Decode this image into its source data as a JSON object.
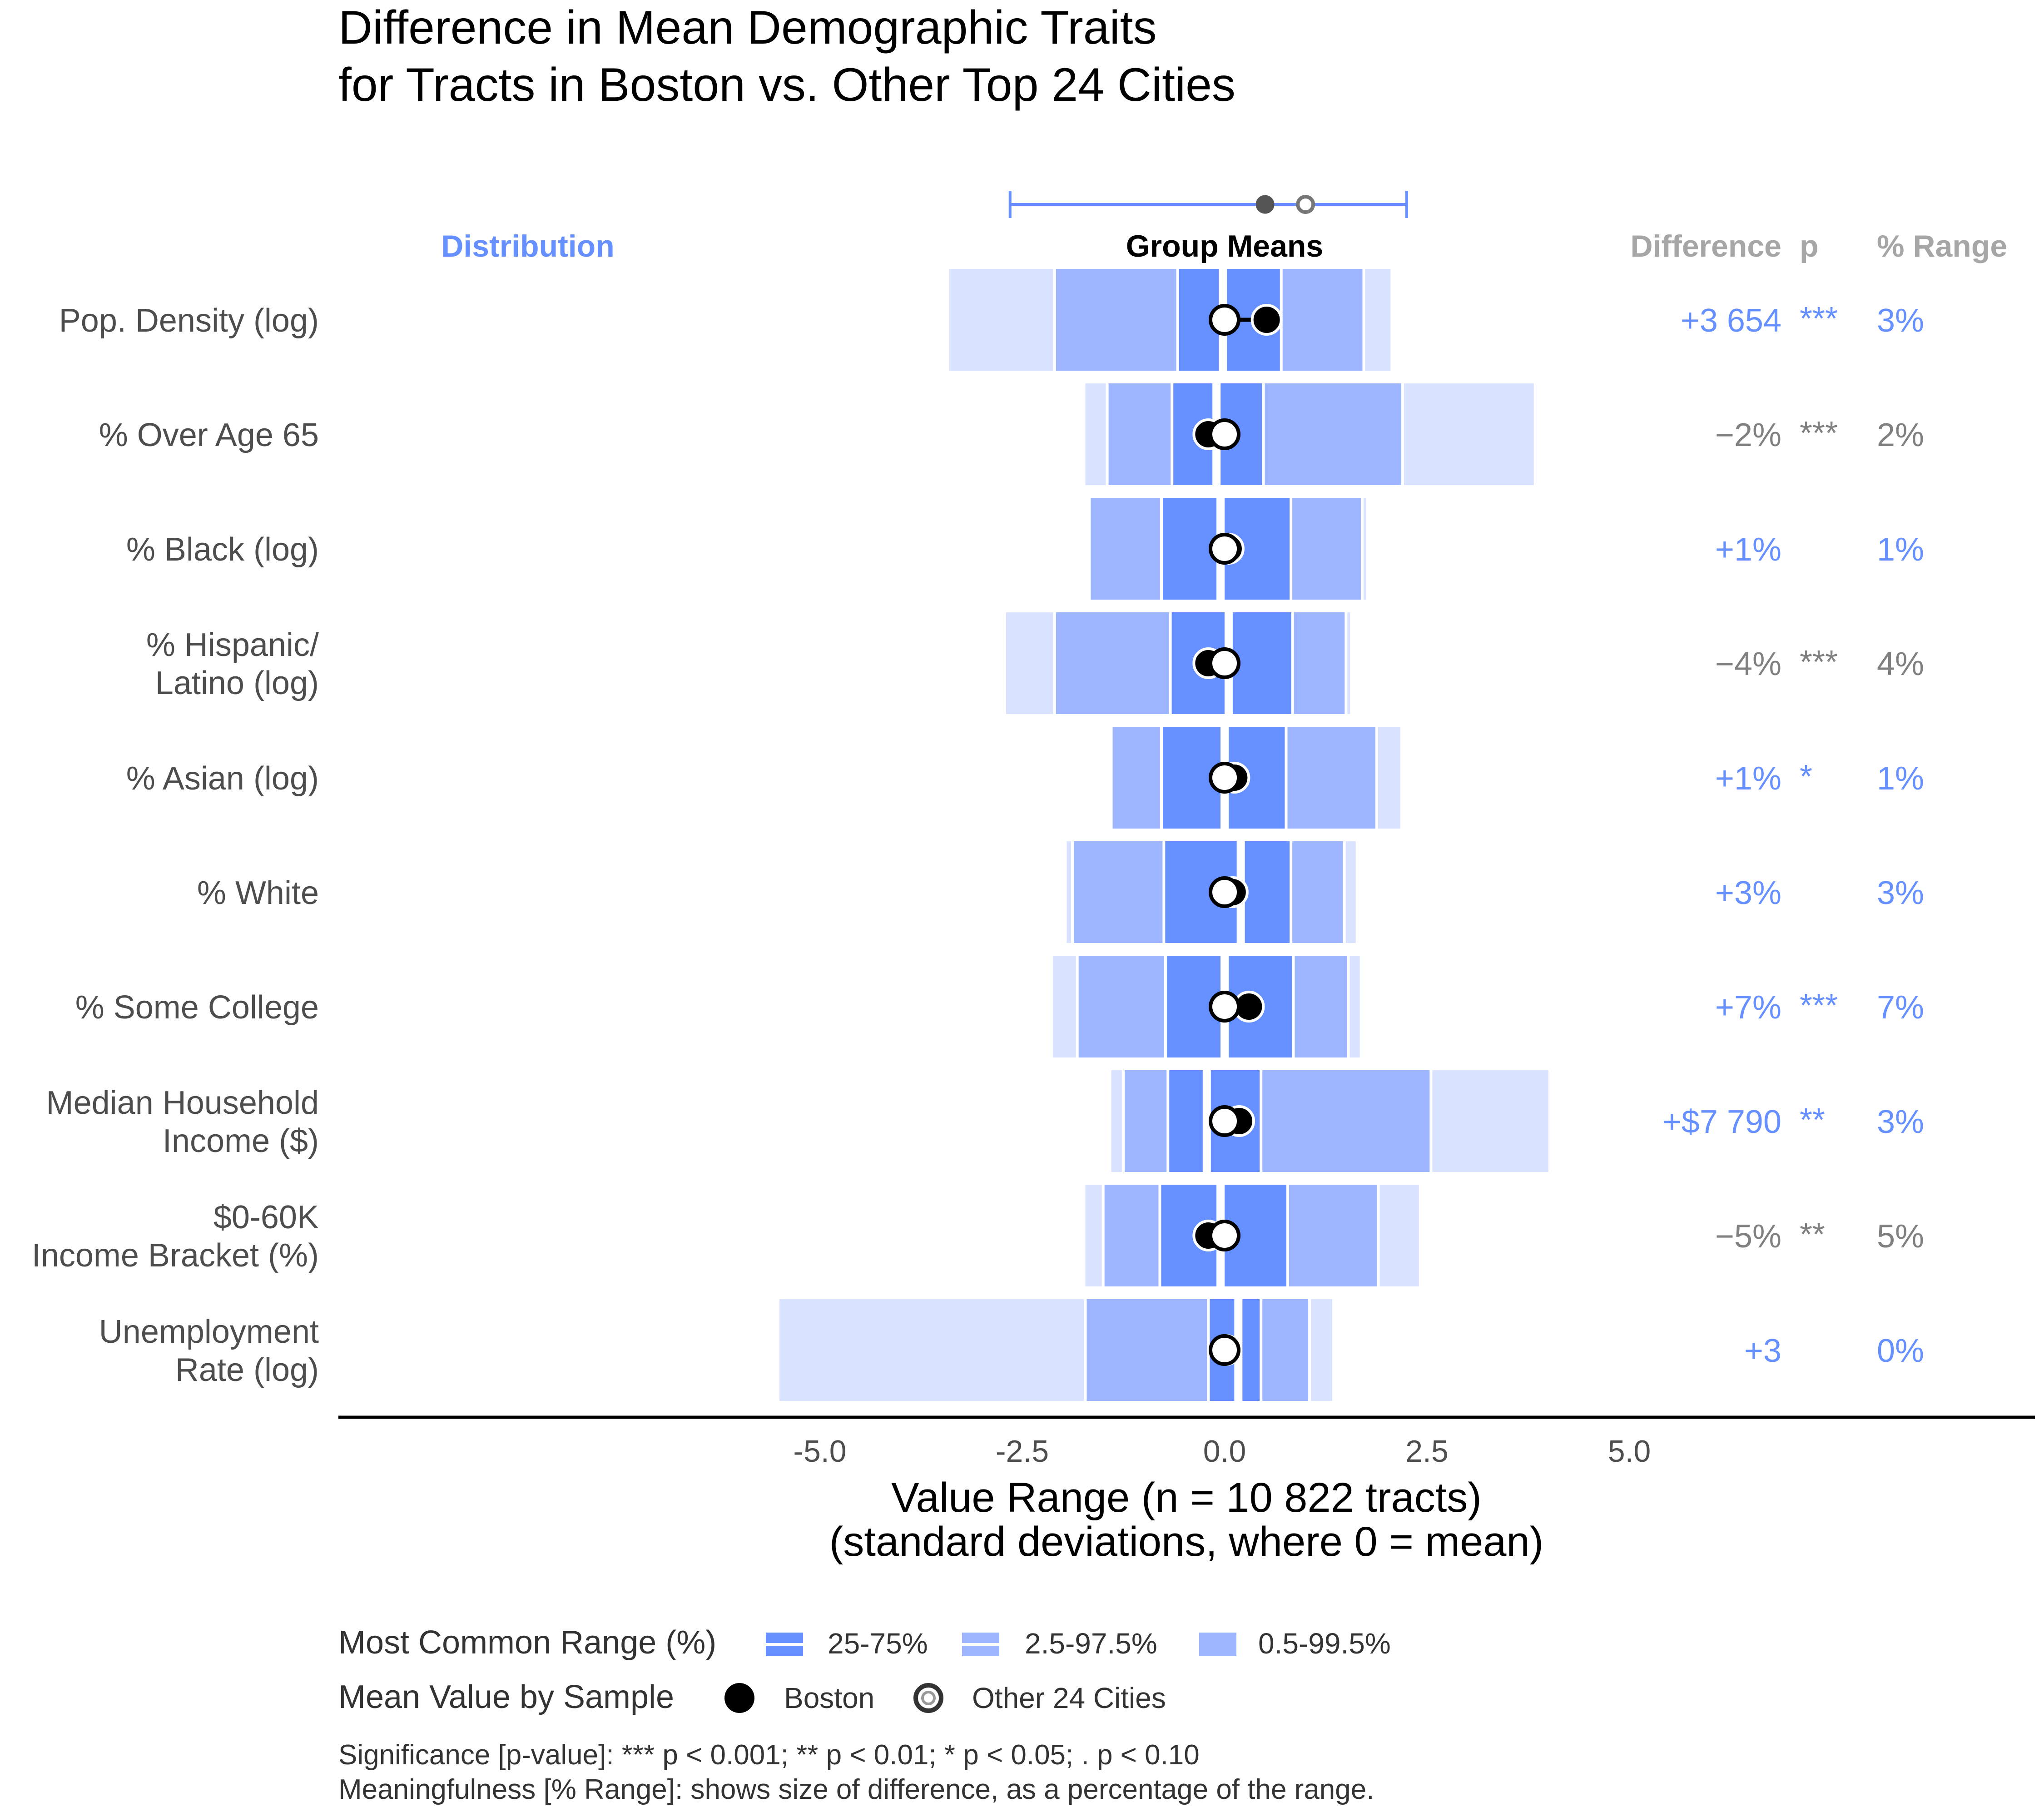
{
  "title_lines": [
    "Difference in Mean Demographic Traits",
    "for Tracts in Boston vs. Other Top 24 Cities"
  ],
  "headers": {
    "distribution": "Distribution",
    "group_means": "Group Means",
    "difference": "Difference",
    "p": "p",
    "pct_range": "% Range"
  },
  "colors": {
    "band_inner": "#6690FF",
    "band_middle": "#9DB6FF",
    "band_outer": "#D9E3FF",
    "accent": "#6690FF",
    "significant_gray": "#808080",
    "header_gray": "#A6A6A6"
  },
  "chart_data": {
    "type": "bar",
    "xlabel": [
      "Value Range (n = 10 822 tracts)",
      "(standard deviations, where 0 = mean)"
    ],
    "xlim": [
      -5.5,
      5.0
    ],
    "xticks": [
      -5.0,
      -2.5,
      0.0,
      2.5,
      5.0
    ],
    "tick_labels": [
      "-5.0",
      "-2.5",
      "0.0",
      "2.5",
      "5.0"
    ],
    "reference_bar": {
      "left": -2.65,
      "right": 2.25,
      "boston": 0.5,
      "other": 1.0
    },
    "rows": [
      {
        "label": [
          "Pop. Density (log)"
        ],
        "outer": [
          -3.4,
          2.05
        ],
        "middle": [
          -2.1,
          1.72
        ],
        "inner": [
          -0.58,
          0.7
        ],
        "median": -0.02,
        "boston": 0.52,
        "other": 0.0,
        "diff": "+3 654",
        "p": "***",
        "pct": "3%",
        "tone": "blue",
        "halo": false
      },
      {
        "label": [
          "% Over Age 65"
        ],
        "outer": [
          -1.72,
          3.82
        ],
        "middle": [
          -1.45,
          2.2
        ],
        "inner": [
          -0.65,
          0.48
        ],
        "median": -0.1,
        "boston": -0.2,
        "other": 0.0,
        "diff": "−2%",
        "p": "***",
        "pct": "2%",
        "tone": "gray",
        "halo": true
      },
      {
        "label": [
          "% Black (log)"
        ],
        "outer": [
          -1.67,
          1.75
        ],
        "middle": [
          -1.67,
          1.7
        ],
        "inner": [
          -0.78,
          0.82
        ],
        "median": -0.05,
        "boston": 0.05,
        "other": 0.0,
        "diff": "+1%",
        "p": "",
        "pct": "1%",
        "tone": "blue",
        "halo": false
      },
      {
        "label": [
          "% Hispanic/",
          "Latino (log)"
        ],
        "outer": [
          -2.7,
          1.55
        ],
        "middle": [
          -2.1,
          1.5
        ],
        "inner": [
          -0.67,
          0.84
        ],
        "median": 0.05,
        "boston": -0.2,
        "other": 0.0,
        "diff": "−4%",
        "p": "***",
        "pct": "4%",
        "tone": "gray",
        "halo": false
      },
      {
        "label": [
          "% Asian (log)"
        ],
        "outer": [
          -1.4,
          2.17
        ],
        "middle": [
          -1.4,
          1.88
        ],
        "inner": [
          -0.78,
          0.76
        ],
        "median": 0.0,
        "boston": 0.12,
        "other": 0.0,
        "diff": "+1%",
        "p": "*",
        "pct": "1%",
        "tone": "blue",
        "halo": false
      },
      {
        "label": [
          "% White"
        ],
        "outer": [
          -1.95,
          1.62
        ],
        "middle": [
          -1.88,
          1.48
        ],
        "inner": [
          -0.75,
          0.82
        ],
        "median": 0.2,
        "boston": 0.1,
        "other": 0.0,
        "diff": "+3%",
        "p": "",
        "pct": "3%",
        "tone": "blue",
        "halo": false
      },
      {
        "label": [
          "% Some College"
        ],
        "outer": [
          -2.12,
          1.67
        ],
        "middle": [
          -1.82,
          1.53
        ],
        "inner": [
          -0.73,
          0.85
        ],
        "median": 0.0,
        "boston": 0.3,
        "other": 0.0,
        "diff": "+7%",
        "p": "***",
        "pct": "7%",
        "tone": "blue",
        "halo": false
      },
      {
        "label": [
          "Median Household",
          "Income ($)"
        ],
        "outer": [
          -1.4,
          4.0
        ],
        "middle": [
          -1.25,
          2.55
        ],
        "inner": [
          -0.7,
          0.45
        ],
        "median": -0.22,
        "boston": 0.18,
        "other": 0.0,
        "diff": "+$7 790",
        "p": "**",
        "pct": "3%",
        "tone": "blue",
        "halo": true
      },
      {
        "label": [
          "$0-60K ",
          "Income Bracket (%)"
        ],
        "outer": [
          -1.72,
          2.4
        ],
        "middle": [
          -1.5,
          1.9
        ],
        "inner": [
          -0.8,
          0.78
        ],
        "median": -0.05,
        "boston": -0.2,
        "other": 0.0,
        "diff": "−5%",
        "p": "**",
        "pct": "5%",
        "tone": "gray",
        "halo": false
      },
      {
        "label": [
          "Unemployment",
          "Rate (log)"
        ],
        "outer": [
          -5.5,
          1.33
        ],
        "middle": [
          -1.72,
          1.05
        ],
        "inner": [
          -0.2,
          0.45
        ],
        "median": 0.17,
        "boston": 0.02,
        "other": 0.0,
        "diff": "+3",
        "p": "",
        "pct": "0%",
        "tone": "blue",
        "halo": false
      }
    ]
  },
  "legend": {
    "range_title": "Most Common Range (%)",
    "range_items": [
      "25-75%",
      "2.5-97.5%",
      "0.5-99.5%"
    ],
    "mean_title": "Mean Value by Sample",
    "mean_items": [
      "Boston",
      "Other 24 Cities"
    ]
  },
  "caption": [
    "Significance [p-value]: *** p < 0.001; ** p < 0.01; * p < 0.05; . p < 0.10",
    "Meaningfulness [% Range]: shows size of difference, as a percentage of the range."
  ]
}
